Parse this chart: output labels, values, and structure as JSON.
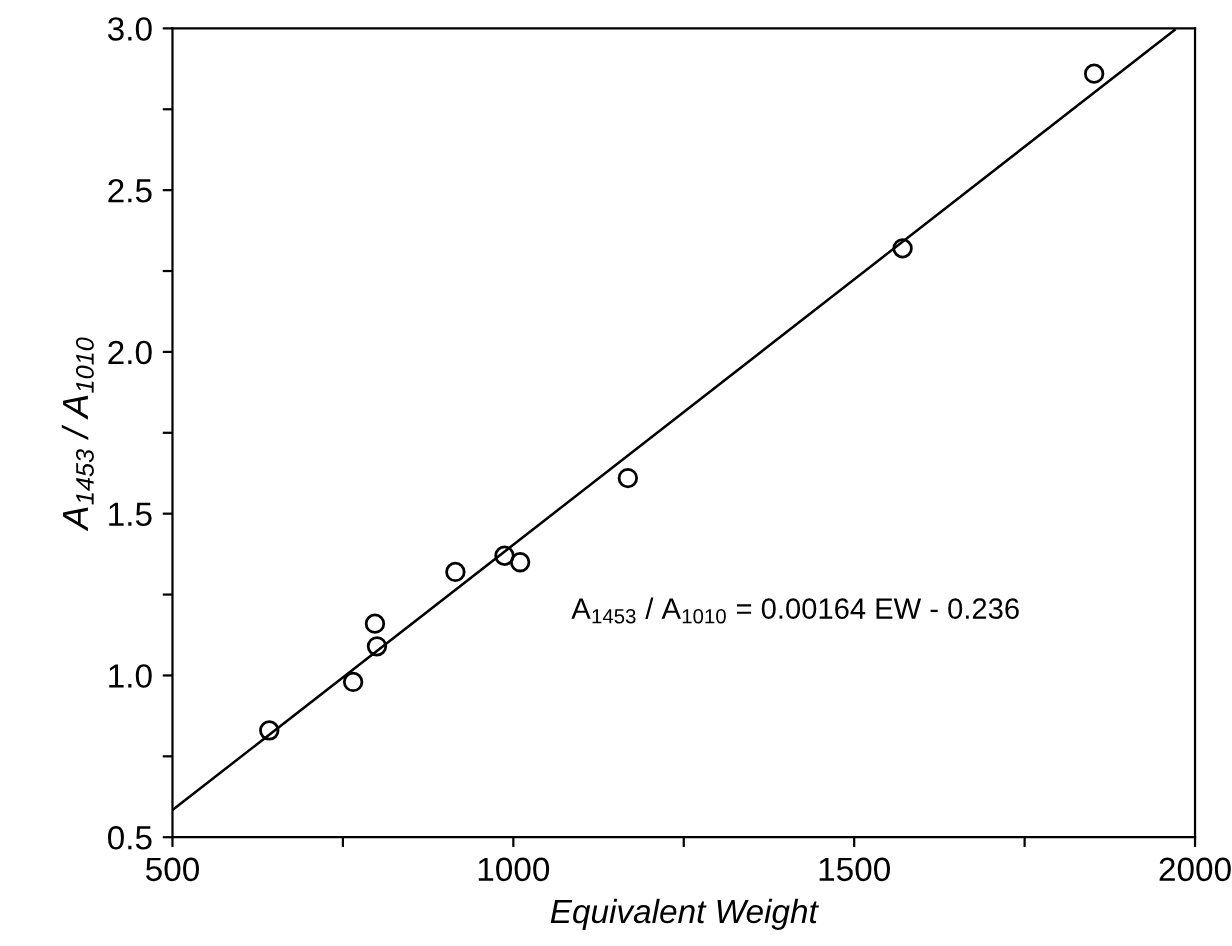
{
  "chart_data": {
    "type": "scatter",
    "xlabel": "Equivalent Weight",
    "ylabel": "A$_{1453}$ / A$_{1010}$",
    "annotations": [
      "A$_{1453}$ / A$_{1010}$ = 0.00164 EW - 0.236"
    ],
    "xlim": [
      500,
      2000
    ],
    "ylim": [
      0.5,
      3.0
    ],
    "xticks": [
      500,
      {
        "value": 750,
        "label": null
      },
      1000,
      {
        "value": 1250,
        "label": null
      },
      1500,
      {
        "value": 1750,
        "label": null
      },
      2000
    ],
    "yticks": [
      0.5,
      {
        "value": 0.75,
        "label": null
      },
      {
        "value": 1,
        "label": "1.0"
      },
      {
        "value": 1.25,
        "label": null
      },
      1.5,
      {
        "value": 1.75,
        "label": null
      },
      {
        "value": 2,
        "label": "2.0"
      },
      {
        "value": 2.25,
        "label": null
      },
      2.5,
      {
        "value": 2.75,
        "label": null
      },
      {
        "value": 3,
        "label": "3.0"
      }
    ],
    "grid": false,
    "series": [
      {
        "color": "#000000",
        "marker": "circle",
        "x": [
          642,
          765,
          797,
          800,
          915,
          987,
          1010,
          1168,
          1571,
          1852
        ],
        "values": [
          0.83,
          0.98,
          1.16,
          1.09,
          1.32,
          1.37,
          1.35,
          1.61,
          2.32,
          2.86
        ]
      },
      {
        "type": "line",
        "color": "#000000",
        "marker": "none",
        "x": [
          500,
          1970
        ],
        "values": [
          0.584,
          2.995
        ]
      }
    ]
  }
}
